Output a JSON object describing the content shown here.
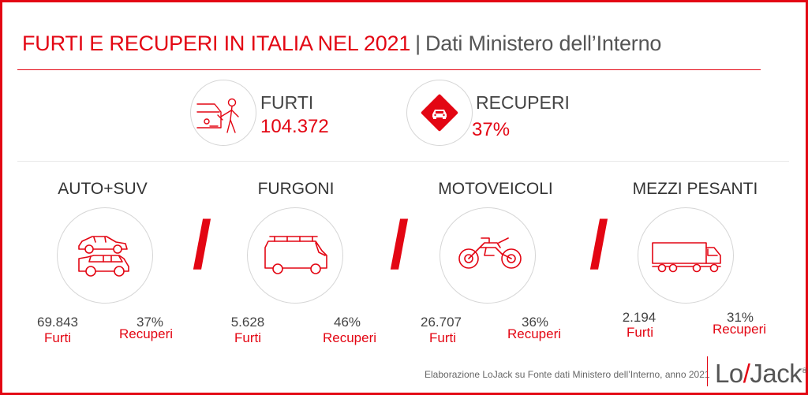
{
  "header": {
    "title": "FURTI E RECUPERI IN ITALIA NEL 2021",
    "separator": "|",
    "subtitle": "Dati Ministero dell’Interno"
  },
  "totals": {
    "furti": {
      "label": "FURTI",
      "value": "104.372",
      "icon": "thief-car-icon"
    },
    "recuperi": {
      "label": "RECUPERI",
      "value": "37%",
      "icon": "car-recovery-diamond-icon"
    }
  },
  "categories": [
    {
      "label": "AUTO+SUV",
      "furti_value": "69.843",
      "furti_label": "Furti",
      "recuperi_value": "37%",
      "recuperi_label": "Recuperi",
      "icon": "car-suv-icon"
    },
    {
      "label": "FURGONI",
      "furti_value": "5.628",
      "furti_label": "Furti",
      "recuperi_value": "46%",
      "recuperi_label": "Recuperi",
      "icon": "van-icon"
    },
    {
      "label": "MOTOVEICOLI",
      "furti_value": "26.707",
      "furti_label": "Furti",
      "recuperi_value": "36%",
      "recuperi_label": "Recuperi",
      "icon": "motorcycle-icon"
    },
    {
      "label": "MEZZI PESANTI",
      "furti_value": "2.194",
      "furti_label": "Furti",
      "recuperi_value": "31%",
      "recuperi_label": "Recuperi",
      "icon": "truck-icon"
    }
  ],
  "divider_glyph": "/",
  "footer": {
    "source": "Elaborazione LoJack su Fonte dati Ministero dell’Interno, anno 2021",
    "logo_left": "Lo",
    "logo_slash": "/",
    "logo_right": "Jack",
    "logo_mark": "®"
  },
  "colors": {
    "accent": "#e30613",
    "text": "#3c3c3c",
    "circle_border": "#d6d6d6"
  }
}
